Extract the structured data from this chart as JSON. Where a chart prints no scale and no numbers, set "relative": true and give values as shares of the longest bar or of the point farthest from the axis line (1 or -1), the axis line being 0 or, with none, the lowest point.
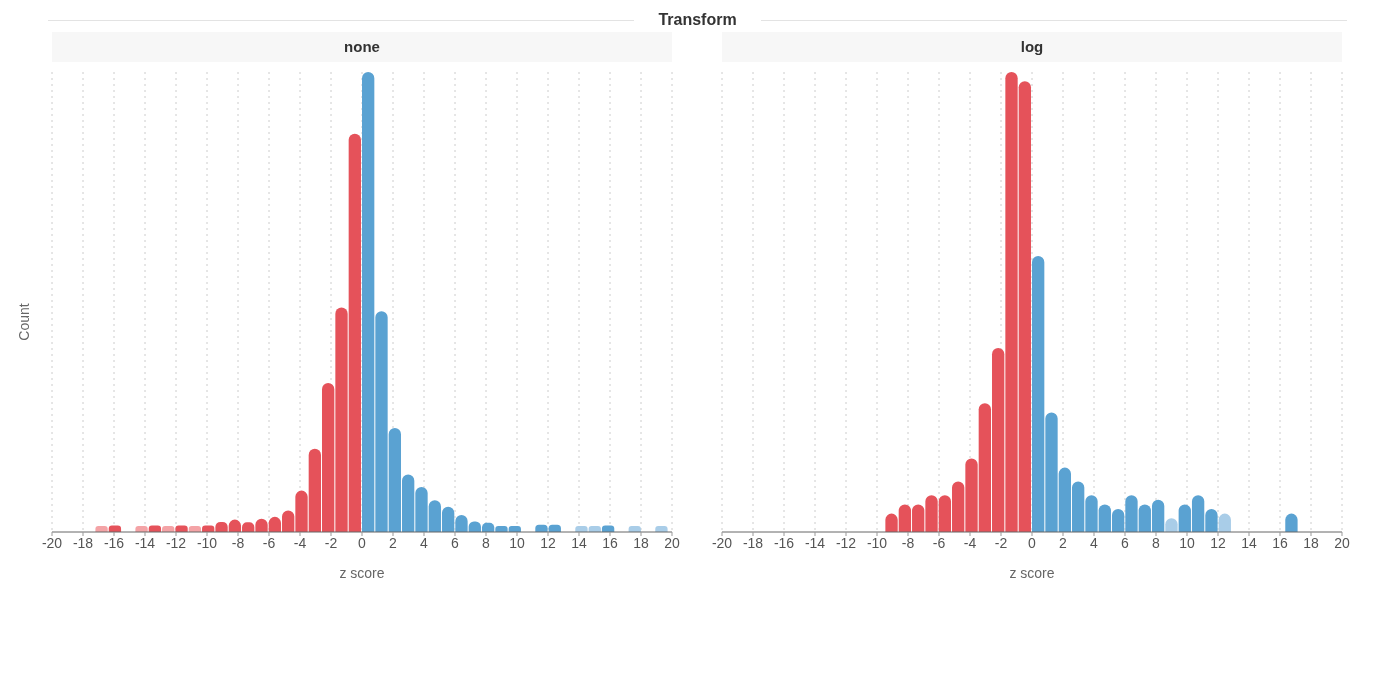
{
  "chart_data": [
    {
      "type": "bar",
      "title": "none",
      "annotations": [
        "Transform"
      ],
      "ylabel": "Count",
      "xlabel": "z score",
      "relative": true,
      "xlim": [
        -20,
        20
      ],
      "xticks": [
        -20,
        -18,
        -16,
        -14,
        -12,
        -10,
        -8,
        -6,
        -4,
        -2,
        0,
        2,
        4,
        6,
        8,
        10,
        12,
        14,
        16,
        18,
        20
      ],
      "grid": "x",
      "x": [
        -16.77,
        -15.91,
        -15.05,
        -14.19,
        -13.33,
        -12.47,
        -11.61,
        -10.75,
        -9.89,
        -9.03,
        -8.17,
        -7.31,
        -6.45,
        -5.59,
        -4.73,
        -3.87,
        -3.01,
        -2.15,
        -1.29,
        -0.43,
        0.43,
        1.29,
        2.15,
        3.01,
        3.87,
        4.73,
        5.59,
        6.45,
        7.31,
        8.17,
        9.03,
        9.89,
        10.75,
        11.61,
        12.47,
        13.33,
        14.19,
        15.05,
        15.91,
        16.77,
        17.63,
        18.49,
        19.35
      ],
      "values": [
        0.013,
        0.014,
        null,
        0.013,
        0.014,
        0.013,
        0.014,
        0.013,
        0.014,
        0.022,
        0.027,
        0.021,
        0.029,
        0.033,
        0.047,
        0.09,
        0.181,
        0.324,
        0.488,
        0.866,
        1,
        0.48,
        0.226,
        0.125,
        0.098,
        0.069,
        0.055,
        0.037,
        0.023,
        0.02,
        0.013,
        0.013,
        null,
        0.016,
        0.016,
        null,
        0.013,
        0.013,
        0.014,
        null,
        0.013,
        null,
        0.013
      ],
      "colors": [
        "#f4a3a6",
        "#e5525a",
        "#e5525a",
        "#f4a3a6",
        "#e5525a",
        "#f4a3a6",
        "#e5525a",
        "#f4a3a6",
        "#e5525a",
        "#e5525a",
        "#e5525a",
        "#e5525a",
        "#e5525a",
        "#e5525a",
        "#e5525a",
        "#e5525a",
        "#e5525a",
        "#e5525a",
        "#e5525a",
        "#e5525a",
        "#5aa2d2",
        "#5aa2d2",
        "#5aa2d2",
        "#5aa2d2",
        "#5aa2d2",
        "#5aa2d2",
        "#5aa2d2",
        "#5aa2d2",
        "#5aa2d2",
        "#5aa2d2",
        "#5aa2d2",
        "#5aa2d2",
        "#5aa2d2",
        "#5aa2d2",
        "#5aa2d2",
        "#5aa2d2",
        "#a9cde8",
        "#a9cde8",
        "#5aa2d2",
        "#5aa2d2",
        "#a9cde8",
        "#5aa2d2",
        "#a9cde8"
      ]
    },
    {
      "type": "bar",
      "title": "log",
      "xlabel": "z score",
      "relative": true,
      "xlim": [
        -20,
        20
      ],
      "xticks": [
        -20,
        -18,
        -16,
        -14,
        -12,
        -10,
        -8,
        -6,
        -4,
        -2,
        0,
        2,
        4,
        6,
        8,
        10,
        12,
        14,
        16,
        18,
        20
      ],
      "grid": "x",
      "x": [
        -9.03,
        -8.17,
        -7.31,
        -6.45,
        -5.59,
        -4.73,
        -3.87,
        -3.01,
        -2.15,
        -1.29,
        -0.43,
        0.43,
        1.29,
        2.15,
        3.01,
        3.87,
        4.73,
        5.59,
        6.45,
        7.31,
        8.17,
        9.03,
        9.89,
        10.75,
        11.61,
        12.47,
        13.33,
        14.19,
        15.05,
        15.91,
        16.77
      ],
      "values": [
        0.04,
        0.06,
        0.06,
        0.08,
        0.08,
        0.11,
        0.16,
        0.28,
        0.4,
        1,
        0.98,
        0.6,
        0.26,
        0.14,
        0.11,
        0.08,
        0.06,
        0.05,
        0.08,
        0.06,
        0.07,
        0.03,
        0.06,
        0.08,
        0.05,
        0.04,
        null,
        null,
        null,
        null,
        0.04
      ],
      "colors": [
        "#e5525a",
        "#e5525a",
        "#e5525a",
        "#e5525a",
        "#e5525a",
        "#e5525a",
        "#e5525a",
        "#e5525a",
        "#e5525a",
        "#e5525a",
        "#e5525a",
        "#5aa2d2",
        "#5aa2d2",
        "#5aa2d2",
        "#5aa2d2",
        "#5aa2d2",
        "#5aa2d2",
        "#5aa2d2",
        "#5aa2d2",
        "#5aa2d2",
        "#5aa2d2",
        "#a9cde8",
        "#5aa2d2",
        "#5aa2d2",
        "#5aa2d2",
        "#a9cde8",
        "#5aa2d2",
        "#5aa2d2",
        "#5aa2d2",
        "#5aa2d2",
        "#5aa2d2"
      ]
    }
  ]
}
